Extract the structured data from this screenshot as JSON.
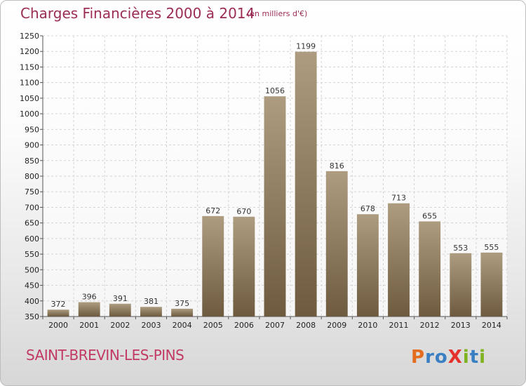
{
  "header": {
    "title": "Charges Financières 2000 à 2014",
    "subtitle": "(en milliers d'€)"
  },
  "footer": {
    "city": "SAINT-BREVIN-LES-PINS",
    "logo_text": "Proxiti"
  },
  "colors": {
    "bar_top": "#ad9c80",
    "bar_bottom": "#6e5b3f",
    "title": "#9a2c55",
    "city": "#c23a63"
  },
  "chart_data": {
    "type": "bar",
    "title": "Charges Financières 2000 à 2014",
    "subtitle": "(en milliers d'€)",
    "categories": [
      "2000",
      "2001",
      "2002",
      "2003",
      "2004",
      "2005",
      "2006",
      "2007",
      "2008",
      "2009",
      "2010",
      "2011",
      "2012",
      "2013",
      "2014"
    ],
    "values": [
      372,
      396,
      391,
      381,
      375,
      672,
      670,
      1056,
      1199,
      816,
      678,
      713,
      655,
      553,
      555
    ],
    "ylim": [
      350,
      1250
    ],
    "yticks": [
      350,
      400,
      450,
      500,
      550,
      600,
      650,
      700,
      750,
      800,
      850,
      900,
      950,
      1000,
      1050,
      1100,
      1150,
      1200,
      1250
    ],
    "grid": true,
    "legend": "none"
  }
}
